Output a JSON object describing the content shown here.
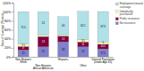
{
  "chart_data": {
    "type": "bar",
    "stacked": true,
    "data_labels": true,
    "grid": false,
    "legend": "right",
    "categories": [
      "Non-Hispanic\nWhite",
      "Non-Hispanic\nAfrican American",
      "Hispanic",
      "Other",
      "General Population\n(Under Age 65)"
    ],
    "series": [
      {
        "name": "No insurance",
        "color": "#8080cc",
        "values": [
          15.0,
          22.0,
          33.0,
          22.0,
          17.5
        ]
      },
      {
        "name": "Public insurance",
        "color": "#800040",
        "values": [
          8.0,
          23.0,
          13.0,
          11.0,
          10.5
        ]
      },
      {
        "name": "Individually\npurchased",
        "color": "#ffffb3",
        "values": [
          5.5,
          3.0,
          3.0,
          5.5,
          5.0
        ],
        "value_labels": [
          "5.5",
          null,
          null,
          "5.5",
          "5"
        ]
      },
      {
        "name": "Employment-based\ncoverage",
        "color": "#b0e0e8",
        "values": [
          71.5,
          52.0,
          40.0,
          62.1,
          67.3
        ]
      }
    ],
    "y_label": "Basis of Coverage (Percent)",
    "ylim": [
      0,
      120
    ],
    "yticks": [
      {
        "value": 0,
        "label": "0%"
      },
      {
        "value": 20,
        "label": "20%"
      },
      {
        "value": 40,
        "label": "40%"
      },
      {
        "value": 60,
        "label": "60%"
      },
      {
        "value": 80,
        "label": "80%"
      },
      {
        "value": 100,
        "label": "100%"
      },
      {
        "value": 120,
        "label": "120%"
      }
    ]
  }
}
